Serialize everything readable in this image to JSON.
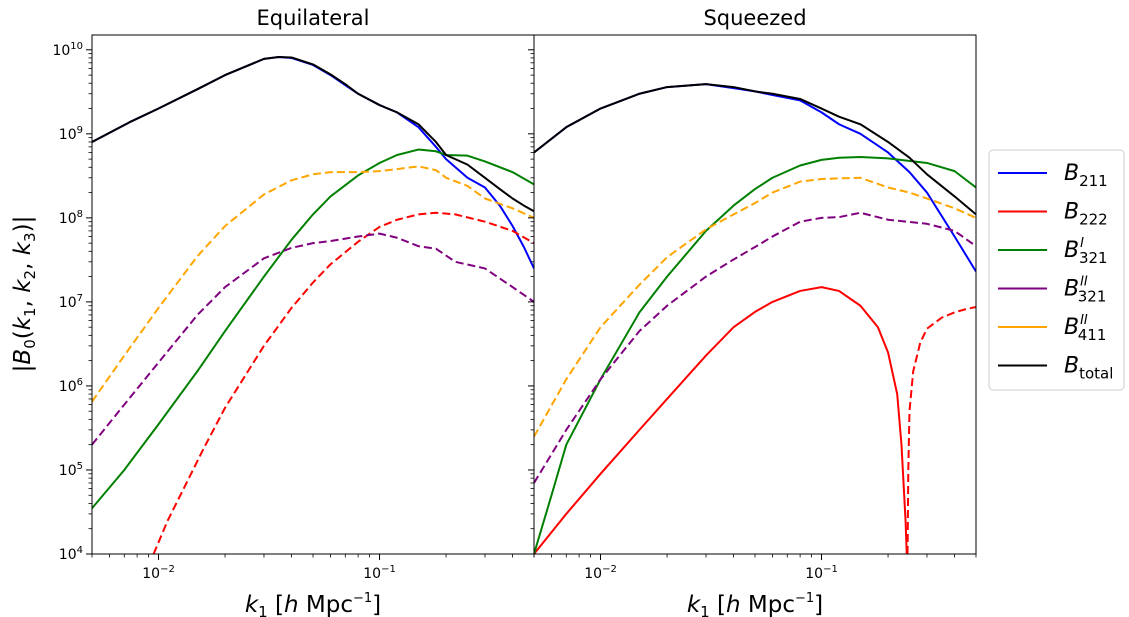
{
  "chart_data": [
    {
      "type": "line",
      "title": "Equilateral",
      "xlabel": "k_1 [h Mpc^-1]",
      "ylabel": "|B_0(k_1, k_2, k_3)|",
      "xscale": "log",
      "yscale": "log",
      "xlim": [
        0.005,
        0.5
      ],
      "ylim": [
        10000,
        15000000000
      ],
      "xticks": [
        "10^-2",
        "10^-1"
      ],
      "yticks": [
        "10^4",
        "10^5",
        "10^6",
        "10^7",
        "10^8",
        "10^9",
        "10^10"
      ],
      "grid": false,
      "series": [
        {
          "name": "B_211",
          "color": "#0000ff",
          "dash": "solid",
          "x": [
            0.005,
            0.0075,
            0.01,
            0.015,
            0.02,
            0.03,
            0.035,
            0.04,
            0.05,
            0.06,
            0.07,
            0.08,
            0.1,
            0.12,
            0.15,
            0.18,
            0.2,
            0.25,
            0.3,
            0.35,
            0.4,
            0.45,
            0.5
          ],
          "y": [
            800000000,
            1400000000,
            2000000000,
            3400000000,
            5000000000,
            7800000000,
            8200000000,
            8000000000,
            6600000000,
            5000000000,
            3800000000,
            3000000000,
            2200000000,
            1800000000,
            1200000000,
            700000000,
            500000000,
            300000000,
            230000000,
            140000000,
            80000000,
            45000000,
            25000000
          ]
        },
        {
          "name": "B_222",
          "color": "#ff0000",
          "dash": "dashed",
          "x": [
            0.0095,
            0.011,
            0.013,
            0.016,
            0.02,
            0.025,
            0.03,
            0.04,
            0.05,
            0.06,
            0.08,
            0.1,
            0.12,
            0.15,
            0.18,
            0.22,
            0.3,
            0.4,
            0.5
          ],
          "y": [
            10000,
            25000,
            60000,
            180000,
            550000,
            1400000,
            3000000,
            8500000,
            17000000,
            28000000,
            52000000,
            78000000,
            95000000,
            110000000,
            115000000,
            110000000,
            90000000,
            70000000,
            50000000
          ]
        },
        {
          "name": "B^I_321",
          "color": "#008000",
          "dash": "solid",
          "x": [
            0.005,
            0.007,
            0.01,
            0.015,
            0.02,
            0.03,
            0.04,
            0.05,
            0.06,
            0.08,
            0.1,
            0.12,
            0.15,
            0.18,
            0.2,
            0.25,
            0.3,
            0.4,
            0.5
          ],
          "y": [
            35000,
            100000,
            350000,
            1500000,
            4500000,
            20000000,
            55000000,
            110000000,
            180000000,
            320000000,
            450000000,
            560000000,
            650000000,
            620000000,
            560000000,
            550000000,
            470000000,
            350000000,
            250000000
          ]
        },
        {
          "name": "B^II_321",
          "color": "#800080",
          "dash": "dashed",
          "x": [
            0.005,
            0.007,
            0.01,
            0.015,
            0.02,
            0.03,
            0.04,
            0.05,
            0.06,
            0.08,
            0.1,
            0.12,
            0.15,
            0.18,
            0.22,
            0.3,
            0.4,
            0.5
          ],
          "y": [
            200000,
            600000,
            1900000,
            7000000,
            15000000,
            33000000,
            44000000,
            50000000,
            53000000,
            60000000,
            65000000,
            58000000,
            46000000,
            43000000,
            30000000,
            25000000,
            15000000,
            10000000
          ]
        },
        {
          "name": "B^II_411",
          "color": "#ffa500",
          "dash": "dashed",
          "x": [
            0.005,
            0.007,
            0.01,
            0.015,
            0.02,
            0.03,
            0.04,
            0.05,
            0.06,
            0.08,
            0.1,
            0.12,
            0.15,
            0.18,
            0.2,
            0.25,
            0.3,
            0.4,
            0.5
          ],
          "y": [
            650000,
            2300000,
            8500000,
            35000000,
            80000000,
            190000000,
            280000000,
            330000000,
            350000000,
            350000000,
            360000000,
            380000000,
            410000000,
            370000000,
            300000000,
            240000000,
            170000000,
            130000000,
            100000000
          ]
        },
        {
          "name": "B_total",
          "color": "#000000",
          "dash": "solid",
          "x": [
            0.005,
            0.0075,
            0.01,
            0.015,
            0.02,
            0.03,
            0.035,
            0.04,
            0.05,
            0.06,
            0.07,
            0.08,
            0.1,
            0.12,
            0.15,
            0.18,
            0.2,
            0.25,
            0.3,
            0.35,
            0.4,
            0.45,
            0.5
          ],
          "y": [
            800000000,
            1400000000,
            2000000000,
            3400000000,
            5000000000,
            7800000000,
            8200000000,
            8100000000,
            6700000000,
            5100000000,
            3900000000,
            3000000000,
            2200000000,
            1800000000,
            1300000000,
            800000000,
            560000000,
            430000000,
            300000000,
            220000000,
            170000000,
            140000000,
            120000000
          ]
        }
      ]
    },
    {
      "type": "line",
      "title": "Squeezed",
      "xlabel": "k_1 [h Mpc^-1]",
      "xscale": "log",
      "yscale": "log",
      "xlim": [
        0.005,
        0.5
      ],
      "ylim": [
        10000,
        15000000000
      ],
      "xticks": [
        "10^-2",
        "10^-1"
      ],
      "grid": false,
      "series": [
        {
          "name": "B_211",
          "color": "#0000ff",
          "dash": "solid",
          "x": [
            0.005,
            0.007,
            0.01,
            0.015,
            0.02,
            0.03,
            0.04,
            0.05,
            0.06,
            0.08,
            0.1,
            0.12,
            0.15,
            0.2,
            0.25,
            0.3,
            0.4,
            0.5
          ],
          "y": [
            600000000,
            1200000000,
            2000000000,
            3000000000,
            3600000000,
            3900000000,
            3500000000,
            3200000000,
            2900000000,
            2500000000,
            1800000000,
            1300000000,
            1000000000,
            600000000,
            350000000,
            200000000,
            60000000,
            23000000
          ]
        },
        {
          "name": "B_222",
          "color": "#ff0000",
          "dash": "solid",
          "x": [
            0.005,
            0.007,
            0.01,
            0.015,
            0.02,
            0.03,
            0.04,
            0.05,
            0.06,
            0.08,
            0.1,
            0.12,
            0.15,
            0.18,
            0.2,
            0.22,
            0.23,
            0.24,
            0.243
          ],
          "y": [
            10000,
            30000,
            90000,
            300000,
            700000,
            2300000,
            5000000,
            7600000,
            10000000,
            13500000,
            15000000,
            13500000,
            9000000,
            5000000,
            2500000,
            800000,
            200000,
            25000,
            10000
          ]
        },
        {
          "name": "B_222",
          "color": "#ff0000",
          "dash": "dashed",
          "x": [
            0.245,
            0.247,
            0.25,
            0.26,
            0.28,
            0.3,
            0.35,
            0.4,
            0.45,
            0.5
          ],
          "y": [
            10000,
            100000,
            500000,
            1500000,
            3300000,
            4800000,
            6500000,
            7500000,
            8200000,
            8700000
          ]
        },
        {
          "name": "B^I_321",
          "color": "#008000",
          "dash": "solid",
          "x": [
            0.005,
            0.006,
            0.007,
            0.01,
            0.015,
            0.02,
            0.03,
            0.04,
            0.05,
            0.06,
            0.08,
            0.1,
            0.12,
            0.15,
            0.2,
            0.3,
            0.4,
            0.5
          ],
          "y": [
            10000,
            50000,
            200000,
            1200000,
            7500000,
            20000000,
            70000000,
            140000000,
            220000000,
            300000000,
            420000000,
            490000000,
            520000000,
            530000000,
            510000000,
            450000000,
            360000000,
            230000000
          ]
        },
        {
          "name": "B^II_321",
          "color": "#800080",
          "dash": "dashed",
          "x": [
            0.005,
            0.007,
            0.01,
            0.015,
            0.02,
            0.03,
            0.04,
            0.05,
            0.06,
            0.08,
            0.1,
            0.12,
            0.15,
            0.2,
            0.3,
            0.4,
            0.5
          ],
          "y": [
            70000,
            300000,
            1200000,
            4500000,
            9000000,
            20000000,
            32000000,
            45000000,
            60000000,
            90000000,
            100000000,
            102000000,
            115000000,
            95000000,
            85000000,
            70000000,
            46000000
          ]
        },
        {
          "name": "B^II_411",
          "color": "#ffa500",
          "dash": "dashed",
          "x": [
            0.005,
            0.007,
            0.01,
            0.015,
            0.02,
            0.03,
            0.04,
            0.05,
            0.06,
            0.08,
            0.1,
            0.12,
            0.15,
            0.2,
            0.25,
            0.3,
            0.4,
            0.5
          ],
          "y": [
            250000,
            1200000,
            5000000,
            16000000,
            34000000,
            73000000,
            110000000,
            150000000,
            200000000,
            270000000,
            290000000,
            295000000,
            300000000,
            230000000,
            200000000,
            170000000,
            130000000,
            100000000
          ]
        },
        {
          "name": "B_total",
          "color": "#000000",
          "dash": "solid",
          "x": [
            0.005,
            0.007,
            0.01,
            0.015,
            0.02,
            0.03,
            0.04,
            0.05,
            0.06,
            0.08,
            0.1,
            0.12,
            0.15,
            0.2,
            0.25,
            0.3,
            0.4,
            0.5
          ],
          "y": [
            600000000,
            1200000000,
            2000000000,
            3000000000,
            3600000000,
            3900000000,
            3600000000,
            3200000000,
            3000000000,
            2600000000,
            2000000000,
            1600000000,
            1300000000,
            800000000,
            520000000,
            330000000,
            180000000,
            110000000
          ]
        }
      ]
    }
  ],
  "legend": {
    "position": "center-right",
    "entries": [
      {
        "base": "B",
        "sup": "",
        "sub": "211",
        "color": "#0000ff",
        "dash": "solid"
      },
      {
        "base": "B",
        "sup": "",
        "sub": "222",
        "color": "#ff0000",
        "dash": "solid"
      },
      {
        "base": "B",
        "sup": "I",
        "sub": "321",
        "color": "#008000",
        "dash": "solid"
      },
      {
        "base": "B",
        "sup": "II",
        "sub": "321",
        "color": "#800080",
        "dash": "solid"
      },
      {
        "base": "B",
        "sup": "II",
        "sub": "411",
        "color": "#ffa500",
        "dash": "solid"
      },
      {
        "base": "B",
        "sup": "",
        "sub": "total",
        "color": "#000000",
        "dash": "solid"
      }
    ]
  }
}
